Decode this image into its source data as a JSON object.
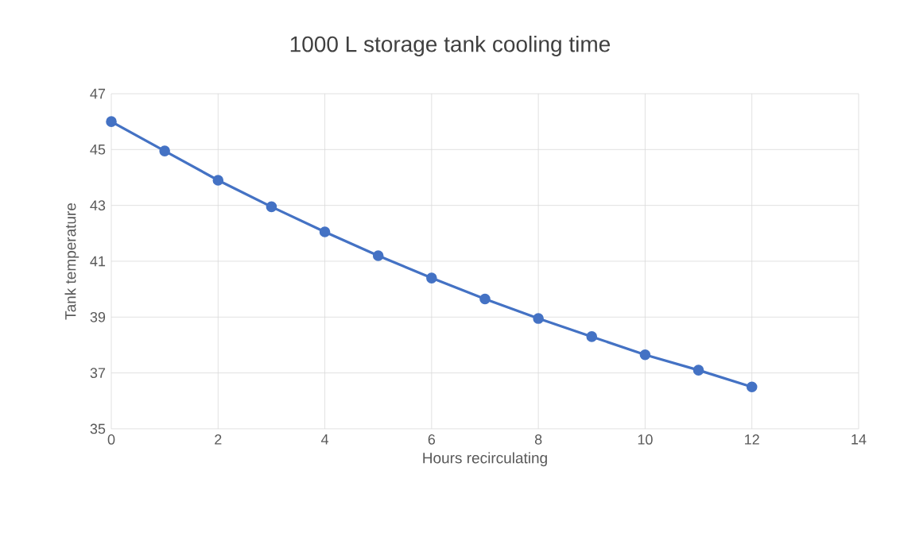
{
  "chart_data": {
    "type": "line",
    "title": "1000 L storage tank cooling time",
    "xlabel": "Hours recirculating",
    "ylabel": "Tank temperature",
    "x": [
      0,
      1,
      2,
      3,
      4,
      5,
      6,
      7,
      8,
      9,
      10,
      11,
      12
    ],
    "values": [
      46,
      44.95,
      43.9,
      42.95,
      42.05,
      41.2,
      40.4,
      39.65,
      38.95,
      38.3,
      37.65,
      37.1,
      36.5
    ],
    "color": "#4472c4",
    "marker": "circle",
    "line_style": "solid",
    "grid": true,
    "xlim": [
      0,
      14
    ],
    "xticks": [
      0,
      2,
      4,
      6,
      8,
      10,
      12,
      14
    ],
    "ylim": [
      35,
      47
    ],
    "yticks": [
      35,
      37,
      39,
      41,
      43,
      45,
      47
    ]
  }
}
